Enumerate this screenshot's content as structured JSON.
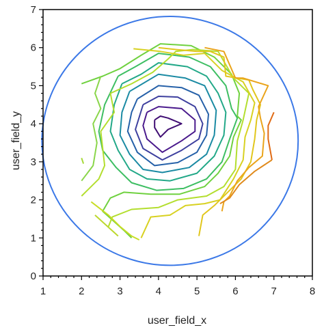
{
  "chart_data": {
    "type": "line",
    "title": "",
    "xlabel": "user_field_x",
    "ylabel": "user_field_y",
    "xlim": [
      1,
      8
    ],
    "ylim": [
      0,
      7
    ],
    "xticks": [
      1,
      2,
      3,
      4,
      5,
      6,
      7,
      8
    ],
    "yticks": [
      0,
      1,
      2,
      3,
      4,
      5,
      6,
      7
    ],
    "xtick_labels": [
      "1",
      "2",
      "3",
      "4",
      "5",
      "6",
      "7",
      "8"
    ],
    "ytick_labels": [
      "0",
      "1",
      "2",
      "3",
      "4",
      "5",
      "6",
      "7"
    ],
    "grid": false,
    "frame_color": "#000000",
    "circle": {
      "color": "#3b78e7",
      "center": [
        4.3,
        3.55
      ],
      "rx": 3.33,
      "ry": 3.27
    },
    "contours": [
      {
        "level": 1,
        "color": "#3f0d73",
        "points": [
          [
            3.9,
            4.1
          ],
          [
            4.05,
            4.2
          ],
          [
            4.25,
            4.15
          ],
          [
            4.6,
            4.0
          ],
          [
            4.25,
            3.85
          ],
          [
            4.05,
            3.65
          ],
          [
            3.9,
            3.9
          ],
          [
            3.9,
            4.1
          ]
        ]
      },
      {
        "level": 2,
        "color": "#4a1a8c",
        "points": [
          [
            3.7,
            4.3
          ],
          [
            4.0,
            4.45
          ],
          [
            4.6,
            4.4
          ],
          [
            4.95,
            4.1
          ],
          [
            4.95,
            3.8
          ],
          [
            4.6,
            3.55
          ],
          [
            4.1,
            3.25
          ],
          [
            3.7,
            3.6
          ],
          [
            3.6,
            3.95
          ],
          [
            3.7,
            4.3
          ]
        ]
      },
      {
        "level": 3,
        "color": "#3d3f9e",
        "points": [
          [
            3.6,
            4.5
          ],
          [
            4.0,
            4.72
          ],
          [
            4.5,
            4.7
          ],
          [
            4.95,
            4.45
          ],
          [
            5.15,
            4.0
          ],
          [
            5.05,
            3.6
          ],
          [
            4.6,
            3.3
          ],
          [
            4.1,
            3.05
          ],
          [
            3.6,
            3.35
          ],
          [
            3.4,
            3.85
          ],
          [
            3.6,
            4.5
          ]
        ]
      },
      {
        "level": 4,
        "color": "#2560a8",
        "points": [
          [
            3.45,
            4.65
          ],
          [
            4.0,
            5.0
          ],
          [
            4.6,
            4.95
          ],
          [
            5.05,
            4.75
          ],
          [
            5.3,
            4.25
          ],
          [
            5.25,
            3.7
          ],
          [
            5.0,
            3.25
          ],
          [
            4.5,
            2.98
          ],
          [
            3.9,
            2.9
          ],
          [
            3.45,
            3.25
          ],
          [
            3.2,
            3.8
          ],
          [
            3.3,
            4.3
          ],
          [
            3.45,
            4.65
          ]
        ]
      },
      {
        "level": 5,
        "color": "#1a8aa3",
        "points": [
          [
            3.25,
            4.85
          ],
          [
            4.0,
            5.3
          ],
          [
            4.7,
            5.2
          ],
          [
            5.2,
            5.0
          ],
          [
            5.5,
            4.35
          ],
          [
            5.45,
            3.7
          ],
          [
            5.25,
            3.2
          ],
          [
            4.8,
            2.85
          ],
          [
            4.1,
            2.72
          ],
          [
            3.6,
            2.8
          ],
          [
            3.25,
            3.2
          ],
          [
            3.0,
            3.7
          ],
          [
            3.05,
            4.3
          ],
          [
            3.25,
            4.85
          ]
        ]
      },
      {
        "level": 6,
        "color": "#22a888",
        "points": [
          [
            3.05,
            5.05
          ],
          [
            3.55,
            5.3
          ],
          [
            4.0,
            5.6
          ],
          [
            4.75,
            5.5
          ],
          [
            5.25,
            5.25
          ],
          [
            5.55,
            4.8
          ],
          [
            5.75,
            4.3
          ],
          [
            5.7,
            3.7
          ],
          [
            5.45,
            3.15
          ],
          [
            5.0,
            2.7
          ],
          [
            4.3,
            2.5
          ],
          [
            3.7,
            2.55
          ],
          [
            3.25,
            2.8
          ],
          [
            2.95,
            3.3
          ],
          [
            2.75,
            3.8
          ],
          [
            2.85,
            4.5
          ],
          [
            3.05,
            5.05
          ]
        ]
      },
      {
        "level": 7,
        "color": "#3dbe62",
        "points": [
          [
            2.95,
            5.25
          ],
          [
            3.4,
            5.5
          ],
          [
            4.0,
            5.85
          ],
          [
            4.8,
            5.75
          ],
          [
            5.35,
            5.5
          ],
          [
            5.75,
            5.0
          ],
          [
            5.9,
            4.4
          ],
          [
            6.05,
            4.15
          ],
          [
            5.85,
            3.6
          ],
          [
            5.65,
            3.0
          ],
          [
            5.25,
            2.55
          ],
          [
            4.65,
            2.3
          ],
          [
            3.95,
            2.25
          ],
          [
            3.3,
            2.45
          ],
          [
            2.9,
            2.85
          ],
          [
            2.55,
            3.3
          ],
          [
            2.45,
            3.8
          ],
          [
            2.6,
            4.5
          ],
          [
            2.95,
            5.25
          ]
        ]
      },
      {
        "level": 8,
        "color": "#6fd13f",
        "points": [
          [
            2.0,
            5.05
          ],
          [
            2.55,
            5.25
          ],
          [
            3.0,
            5.45
          ],
          [
            3.55,
            5.8
          ],
          [
            4.05,
            6.1
          ],
          [
            4.85,
            6.05
          ],
          [
            5.45,
            5.75
          ],
          [
            5.9,
            5.3
          ],
          [
            6.1,
            4.8
          ],
          [
            6.05,
            4.2
          ],
          [
            6.15,
            4.1
          ],
          [
            5.95,
            3.65
          ],
          [
            5.85,
            3.15
          ],
          [
            5.55,
            2.7
          ],
          [
            5.2,
            2.35
          ],
          [
            4.55,
            2.15
          ],
          [
            3.8,
            2.15
          ],
          [
            3.1,
            2.2
          ],
          [
            2.75,
            2.05
          ],
          [
            2.55,
            1.7
          ],
          [
            3.1,
            1.2
          ],
          [
            3.3,
            1.0
          ]
        ]
      },
      {
        "level": 8.5,
        "color": "#8ad64a",
        "points": [
          [
            2.0,
            2.5
          ],
          [
            2.3,
            2.9
          ],
          [
            2.4,
            3.5
          ],
          [
            2.3,
            4.0
          ],
          [
            2.5,
            4.4
          ],
          [
            2.35,
            4.8
          ],
          [
            2.5,
            5.25
          ]
        ]
      },
      {
        "level": 9,
        "color": "#b3de2e",
        "points": [
          [
            2.0,
            2.1
          ],
          [
            2.45,
            2.55
          ],
          [
            2.6,
            2.9
          ],
          [
            2.5,
            3.8
          ],
          [
            2.85,
            4.3
          ],
          [
            2.75,
            4.8
          ],
          [
            3.3,
            5.05
          ],
          [
            3.85,
            5.35
          ],
          [
            4.25,
            5.7
          ],
          [
            4.45,
            5.9
          ],
          [
            4.9,
            5.95
          ],
          [
            5.55,
            5.9
          ],
          [
            5.95,
            5.2
          ],
          [
            6.35,
            4.8
          ],
          [
            6.2,
            4.1
          ],
          [
            6.05,
            3.55
          ],
          [
            6.0,
            2.8
          ],
          [
            5.7,
            2.35
          ],
          [
            5.25,
            2.1
          ],
          [
            4.5,
            2.0
          ],
          [
            4.0,
            1.8
          ],
          [
            3.3,
            1.75
          ],
          [
            2.8,
            1.55
          ],
          [
            2.7,
            1.3
          ]
        ]
      },
      {
        "level": 9.2,
        "color": "#a5d936",
        "points": [
          [
            2.0,
            3.1
          ],
          [
            2.05,
            2.95
          ]
        ]
      },
      {
        "level": 9.5,
        "color": "#c8dd25",
        "points": [
          [
            2.25,
            1.95
          ],
          [
            2.7,
            1.6
          ],
          [
            3.0,
            1.3
          ],
          [
            3.3,
            1.05
          ],
          [
            3.5,
            0.95
          ]
        ]
      },
      {
        "level": 9.7,
        "color": "#bcd82c",
        "points": [
          [
            2.35,
            1.6
          ],
          [
            2.95,
            1.05
          ]
        ]
      },
      {
        "level": 10,
        "color": "#d8d121",
        "points": [
          [
            3.35,
            5.97
          ],
          [
            4.05,
            5.9
          ],
          [
            4.65,
            5.8
          ],
          [
            5.2,
            5.85
          ],
          [
            5.65,
            5.4
          ],
          [
            6.2,
            5.1
          ],
          [
            6.5,
            4.55
          ],
          [
            6.4,
            4.1
          ],
          [
            6.25,
            3.65
          ],
          [
            6.2,
            3.05
          ],
          [
            5.95,
            2.55
          ],
          [
            5.6,
            2.0
          ],
          [
            5.2,
            1.9
          ],
          [
            4.7,
            1.85
          ],
          [
            4.3,
            1.6
          ],
          [
            3.8,
            1.55
          ],
          [
            3.55,
            1.0
          ]
        ]
      },
      {
        "level": 10.5,
        "color": "#e1c61c",
        "points": [
          [
            4.0,
            6.0
          ],
          [
            4.45,
            5.95
          ],
          [
            5.0,
            5.9
          ],
          [
            5.35,
            5.9
          ],
          [
            5.7,
            5.75
          ],
          [
            5.75,
            5.25
          ],
          [
            6.35,
            5.15
          ],
          [
            6.45,
            4.9
          ],
          [
            6.65,
            4.5
          ],
          [
            6.55,
            4.1
          ],
          [
            6.5,
            3.6
          ],
          [
            6.4,
            3.0
          ],
          [
            6.15,
            2.55
          ],
          [
            5.95,
            2.35
          ],
          [
            5.65,
            2.05
          ],
          [
            5.45,
            1.85
          ],
          [
            5.15,
            1.6
          ],
          [
            5.05,
            1.05
          ]
        ]
      },
      {
        "level": 11,
        "color": "#eaa41b",
        "points": [
          [
            5.2,
            6.0
          ],
          [
            5.7,
            5.9
          ],
          [
            6.0,
            5.2
          ],
          [
            6.2,
            5.2
          ],
          [
            6.85,
            5.0
          ],
          [
            6.6,
            4.45
          ],
          [
            6.65,
            4.15
          ],
          [
            6.75,
            3.75
          ],
          [
            6.7,
            3.15
          ],
          [
            6.35,
            2.85
          ],
          [
            6.05,
            2.5
          ],
          [
            5.85,
            2.1
          ],
          [
            5.7,
            1.95
          ],
          [
            5.65,
            1.7
          ]
        ]
      },
      {
        "level": 11.5,
        "color": "#e08a1c",
        "points": [
          [
            5.6,
            1.9
          ],
          [
            5.85,
            2.05
          ],
          [
            6.1,
            2.4
          ],
          [
            6.5,
            2.75
          ],
          [
            6.95,
            3.05
          ]
        ]
      },
      {
        "level": 12,
        "color": "#e06a14",
        "points": [
          [
            6.95,
            3.05
          ],
          [
            6.85,
            3.6
          ],
          [
            6.85,
            3.95
          ],
          [
            7.0,
            4.3
          ]
        ]
      }
    ]
  }
}
